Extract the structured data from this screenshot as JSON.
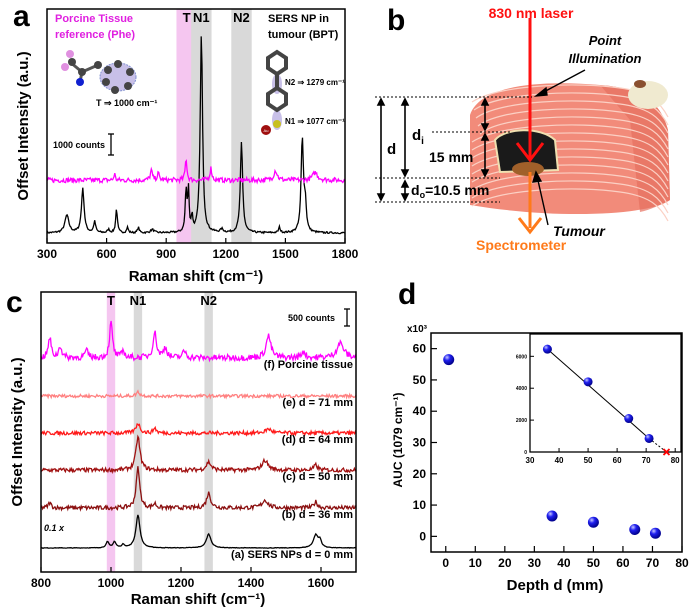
{
  "panels": {
    "a": "a",
    "b": "b",
    "c": "c",
    "d": "d"
  },
  "chart_data": [
    {
      "id": "a",
      "type": "line",
      "xlabel": "Raman shift (cm⁻¹)",
      "ylabel": "Offset  Intensity  (a.u.)",
      "xlim": [
        300,
        1800
      ],
      "xticks": [
        300,
        600,
        900,
        1200,
        1500,
        1800
      ],
      "scale_bar": "1000 counts",
      "bands": [
        {
          "label": "T",
          "center": 1003,
          "color": "#f5c6f0"
        },
        {
          "label": "N1",
          "center": 1077,
          "color": "#d9d9d9"
        },
        {
          "label": "N2",
          "center": 1279,
          "color": "#d9d9d9"
        }
      ],
      "annotations": {
        "left_title": [
          "Porcine Tissue",
          "reference (Phe)"
        ],
        "left_color": "#e020e0",
        "right_title": [
          "SERS NP in",
          "tumour (BPT)"
        ],
        "T_assign": "T ⇒ 1000 cm⁻¹",
        "N1_assign": "N1 ⇒ 1077 cm⁻¹",
        "N2_assign": "N2 ⇒ 1279 cm⁻¹",
        "au_atom": "Au"
      },
      "series": [
        {
          "color": "#000000",
          "offset": 0,
          "noise": 40,
          "peaks": [
            [
              400,
              800,
              12
            ],
            [
              480,
              2000,
              8
            ],
            [
              540,
              500,
              6
            ],
            [
              610,
              150,
              6
            ],
            [
              650,
              1100,
              5
            ],
            [
              705,
              250,
              5
            ],
            [
              760,
              250,
              5
            ],
            [
              830,
              150,
              10
            ],
            [
              1000,
              1900,
              5
            ],
            [
              1012,
              1900,
              4
            ],
            [
              1030,
              700,
              4
            ],
            [
              1077,
              9000,
              7
            ],
            [
              1180,
              150,
              8
            ],
            [
              1279,
              4100,
              7
            ],
            [
              1470,
              250,
              5
            ],
            [
              1585,
              4300,
              7
            ],
            [
              1600,
              1200,
              6
            ]
          ]
        },
        {
          "color": "#ff00ff",
          "offset": 2400,
          "noise": 110,
          "peaks": [
            [
              640,
              300,
              4
            ],
            [
              825,
              450,
              6
            ],
            [
              860,
              300,
              6
            ],
            [
              1000,
              1000,
              5
            ],
            [
              1125,
              550,
              6
            ],
            [
              1450,
              450,
              10
            ],
            [
              1650,
              350,
              15
            ]
          ]
        }
      ]
    },
    {
      "id": "c",
      "type": "line",
      "xlabel": "Raman shift (cm⁻¹)",
      "ylabel": "Offset  Intensity  (a.u.)",
      "xlim": [
        800,
        1700
      ],
      "xticks": [
        800,
        1000,
        1200,
        1400,
        1600
      ],
      "scale_bar": "500 counts",
      "scale_note": "0.1 x",
      "bands": [
        {
          "label": "T",
          "center": 1000,
          "color": "#f5c6f0"
        },
        {
          "label": "N1",
          "center": 1077,
          "color": "#d9d9d9"
        },
        {
          "label": "N2",
          "center": 1279,
          "color": "#d9d9d9"
        }
      ],
      "series": [
        {
          "name": "(a) SERS NPs d = 0 mm",
          "color": "#000000",
          "offset": 0,
          "noise": 8,
          "peaks": [
            [
              990,
              175,
              5
            ],
            [
              1010,
              175,
              5
            ],
            [
              1035,
              90,
              5
            ],
            [
              1077,
              970,
              7
            ],
            [
              1279,
              410,
              8
            ],
            [
              1585,
              380,
              8
            ],
            [
              1597,
              200,
              5
            ]
          ]
        },
        {
          "name": "(b) d = 36 mm",
          "color": "#8b1010",
          "offset": 1180,
          "noise": 60,
          "peaks": [
            [
              825,
              150,
              5
            ],
            [
              1077,
              1180,
              6
            ],
            [
              1125,
              120,
              5
            ],
            [
              1279,
              440,
              7
            ],
            [
              1440,
              230,
              10
            ],
            [
              1585,
              180,
              6
            ]
          ]
        },
        {
          "name": "(c) d = 50 mm",
          "color": "#a01010",
          "offset": 2290,
          "noise": 60,
          "peaks": [
            [
              1077,
              970,
              7
            ],
            [
              1279,
              240,
              8
            ],
            [
              1440,
              290,
              10
            ],
            [
              1585,
              150,
              6
            ]
          ]
        },
        {
          "name": "(d)  d = 64 mm",
          "color": "#ff1a1a",
          "offset": 3380,
          "noise": 55,
          "peaks": [
            [
              1077,
              290,
              7
            ],
            [
              1125,
              150,
              5
            ],
            [
              1450,
              120,
              10
            ]
          ]
        },
        {
          "name": "(e) d = 71 mm",
          "color": "#ff8080",
          "offset": 4470,
          "noise": 45,
          "peaks": [
            [
              1077,
              120,
              6
            ]
          ]
        },
        {
          "name": "(f) Porcine tissue",
          "color": "#ff00ff",
          "offset": 5590,
          "noise": 90,
          "peaks": [
            [
              825,
              590,
              5
            ],
            [
              855,
              350,
              5
            ],
            [
              930,
              200,
              6
            ],
            [
              1000,
              1030,
              5
            ],
            [
              1035,
              200,
              5
            ],
            [
              1125,
              740,
              6
            ],
            [
              1155,
              300,
              6
            ],
            [
              1210,
              200,
              6
            ],
            [
              1450,
              650,
              8
            ],
            [
              1550,
              200,
              6
            ],
            [
              1655,
              440,
              12
            ]
          ]
        }
      ]
    },
    {
      "id": "d",
      "type": "scatter",
      "xlabel": "Depth d (mm)",
      "ylabel": "AUC (1079 cm⁻¹)",
      "y_multiplier": "x10³",
      "xlim": [
        -5,
        80
      ],
      "ylim": [
        -5,
        65
      ],
      "xticks": [
        0,
        10,
        20,
        30,
        40,
        50,
        60,
        70,
        80
      ],
      "yticks": [
        0,
        10,
        20,
        30,
        40,
        50,
        60
      ],
      "point_color": "#1010e0",
      "points": [
        [
          1,
          56.5
        ],
        [
          36,
          6.5
        ],
        [
          50,
          4.5
        ],
        [
          64,
          2.2
        ],
        [
          71,
          1.0
        ]
      ],
      "inset": {
        "type": "scatter",
        "xlim": [
          30,
          82
        ],
        "ylim": [
          0,
          7400
        ],
        "xticks": [
          30,
          40,
          50,
          60,
          70,
          80
        ],
        "yticks": [
          0,
          2000,
          4000,
          6000
        ],
        "points": [
          [
            36,
            6450
          ],
          [
            50,
            4400
          ],
          [
            64,
            2100
          ],
          [
            71,
            850
          ]
        ],
        "fit_line": [
          [
            36,
            6450
          ],
          [
            71,
            850
          ]
        ],
        "extrapolation": [
          [
            71,
            850
          ],
          [
            77,
            0
          ]
        ],
        "x_intercept": [
          77,
          0
        ],
        "x_intercept_color": "#ff0000"
      }
    }
  ],
  "diagram_b": {
    "laser": "830 nm laser",
    "laser_color": "#ff1010",
    "point_illumination": [
      "Point",
      "Illumination"
    ],
    "d": "d",
    "di": "d",
    "di_sub": "i",
    "thickness": "15 mm",
    "do": "d",
    "do_sub": "o",
    "do_value": "=10.5 mm",
    "tumour": "Tumour",
    "spectrometer": "Spectrometer",
    "spectrometer_color": "#ff7a1a",
    "tissue_color": "#f28b7a"
  }
}
